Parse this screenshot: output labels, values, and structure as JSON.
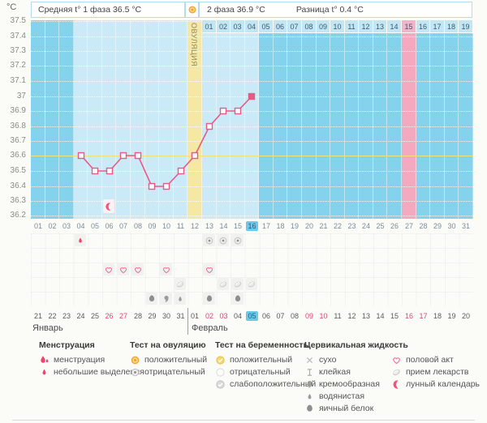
{
  "header": {
    "unit_label": "°C",
    "phase1_label": "Средняя t° 1 фаза 36.5 °C",
    "phase2_label": "2 фаза 36.9 °C",
    "diff_label": "Разница t° 0.4 °C",
    "ovulation_band_label": "ОВУЛЯЦИЯ"
  },
  "chart_data": {
    "type": "line",
    "ylabel": "°C",
    "ylim": [
      36.2,
      37.5
    ],
    "ytick_labels": [
      "37.5",
      "37.4",
      "37.3",
      "37.2",
      "37.1",
      "37",
      "36.9",
      "36.8",
      "36.7",
      "36.6",
      "36.5",
      "36.4",
      "36.3",
      "36.2"
    ],
    "cycle_day_labels": [
      "01",
      "02",
      "03",
      "04",
      "05",
      "06",
      "07",
      "08",
      "09",
      "10",
      "11",
      "12",
      "13",
      "14",
      "15",
      "16",
      "17",
      "18",
      "19",
      "20",
      "21",
      "22",
      "23",
      "24",
      "25",
      "26",
      "27",
      "28",
      "29",
      "30",
      "31"
    ],
    "series": [
      {
        "name": "температура",
        "days": [
          4,
          5,
          6,
          7,
          8,
          9,
          10,
          11,
          12,
          13,
          14,
          15,
          16
        ],
        "values": [
          36.6,
          36.5,
          36.5,
          36.6,
          36.6,
          36.4,
          36.4,
          36.5,
          36.6,
          36.8,
          36.9,
          36.9,
          37.0
        ]
      }
    ],
    "coverline_temp": 36.6,
    "ovulation_cycle_day": 12,
    "current_cycle_day": "16",
    "light_columns": [
      4,
      16
    ],
    "pink_column_cycle_day": 27,
    "moon_marker_cycle_day": 6,
    "dpo_row": {
      "labels": [
        "01",
        "02",
        "03",
        "04",
        "05",
        "06",
        "07",
        "08",
        "09",
        "10",
        "11",
        "12",
        "13",
        "14",
        "15",
        "16",
        "17",
        "18",
        "19"
      ],
      "starts_at_cycle_day": 13,
      "highlighted": "15"
    }
  },
  "events": [
    {
      "row": 1,
      "day": 4,
      "icon": "spotting-drop"
    },
    {
      "row": 1,
      "day": 13,
      "icon": "ovulation-test-negative"
    },
    {
      "row": 1,
      "day": 14,
      "icon": "ovulation-test-negative"
    },
    {
      "row": 1,
      "day": 15,
      "icon": "ovulation-test-negative"
    },
    {
      "row": 3,
      "day": 6,
      "icon": "intercourse-heart"
    },
    {
      "row": 3,
      "day": 7,
      "icon": "intercourse-heart"
    },
    {
      "row": 3,
      "day": 8,
      "icon": "intercourse-heart"
    },
    {
      "row": 3,
      "day": 10,
      "icon": "intercourse-heart"
    },
    {
      "row": 3,
      "day": 13,
      "icon": "intercourse-heart"
    },
    {
      "row": 4,
      "day": 11,
      "icon": "medication-pill"
    },
    {
      "row": 4,
      "day": 14,
      "icon": "medication-pill"
    },
    {
      "row": 4,
      "day": 15,
      "icon": "medication-pill"
    },
    {
      "row": 4,
      "day": 16,
      "icon": "medication-pill"
    },
    {
      "row": 5,
      "day": 9,
      "icon": "cf-eggwhite"
    },
    {
      "row": 5,
      "day": 10,
      "icon": "cf-creamy"
    },
    {
      "row": 5,
      "day": 11,
      "icon": "cf-watery"
    },
    {
      "row": 5,
      "day": 13,
      "icon": "cf-eggwhite"
    },
    {
      "row": 5,
      "day": 15,
      "icon": "cf-eggwhite"
    }
  ],
  "calendar": {
    "months": [
      {
        "label": "Январь",
        "days": [
          {
            "n": "21"
          },
          {
            "n": "22"
          },
          {
            "n": "23"
          },
          {
            "n": "24"
          },
          {
            "n": "25"
          },
          {
            "n": "26",
            "red": true
          },
          {
            "n": "27",
            "red": true
          },
          {
            "n": "28"
          },
          {
            "n": "29"
          },
          {
            "n": "30"
          },
          {
            "n": "31"
          }
        ]
      },
      {
        "label": "Февраль",
        "days": [
          {
            "n": "01"
          },
          {
            "n": "02",
            "red": true
          },
          {
            "n": "03",
            "red": true
          },
          {
            "n": "04"
          },
          {
            "n": "05",
            "today": true
          },
          {
            "n": "06"
          },
          {
            "n": "07"
          },
          {
            "n": "08"
          },
          {
            "n": "09",
            "red": true
          },
          {
            "n": "10",
            "red": true
          },
          {
            "n": "11"
          },
          {
            "n": "12"
          },
          {
            "n": "13"
          },
          {
            "n": "14"
          },
          {
            "n": "15"
          },
          {
            "n": "16",
            "red": true
          },
          {
            "n": "17",
            "red": true
          },
          {
            "n": "18"
          },
          {
            "n": "19"
          },
          {
            "n": "20"
          }
        ]
      }
    ]
  },
  "legend": {
    "groups": [
      {
        "title": "Менструация",
        "items": [
          {
            "icon": "menstruation-drop",
            "label": "менструация"
          },
          {
            "icon": "spotting-drop",
            "label": "небольшие выделения"
          }
        ]
      },
      {
        "title": "Тест на овуляцию",
        "items": [
          {
            "icon": "ovulation-test-positive",
            "label": "положительный"
          },
          {
            "icon": "ovulation-test-negative",
            "label": "отрицательный"
          }
        ]
      },
      {
        "title": "Тест на беременность",
        "items": [
          {
            "icon": "pregnancy-test-positive",
            "label": "положительный"
          },
          {
            "icon": "pregnancy-test-negative",
            "label": "отрицательный"
          },
          {
            "icon": "pregnancy-test-weak-positive",
            "label": "слабоположительный"
          }
        ]
      },
      {
        "title": "Цервикальная жидкость",
        "items": [
          {
            "icon": "cf-dry",
            "label": "сухо"
          },
          {
            "icon": "cf-sticky",
            "label": "клейкая"
          },
          {
            "icon": "cf-creamy",
            "label": "кремообразная"
          },
          {
            "icon": "cf-watery",
            "label": "водянистая"
          },
          {
            "icon": "cf-eggwhite",
            "label": "яичный белок"
          }
        ]
      },
      {
        "title": "",
        "items": [
          {
            "icon": "intercourse-heart",
            "label": "половой акт"
          },
          {
            "icon": "medication-pill",
            "label": "прием лекарств"
          },
          {
            "icon": "moon-calendar",
            "label": "лунный календарь"
          }
        ]
      }
    ]
  },
  "colors": {
    "chart_bg": "#85D2ED",
    "light_column": "#CBEAF8",
    "ovulation_band": "#F5E8A4",
    "pink_band": "#F5A9C1",
    "coverline": "#EFE27A",
    "temp_line": "#E85985",
    "today_highlight": "#69CBEA",
    "weekend_red": "#E8426F"
  }
}
